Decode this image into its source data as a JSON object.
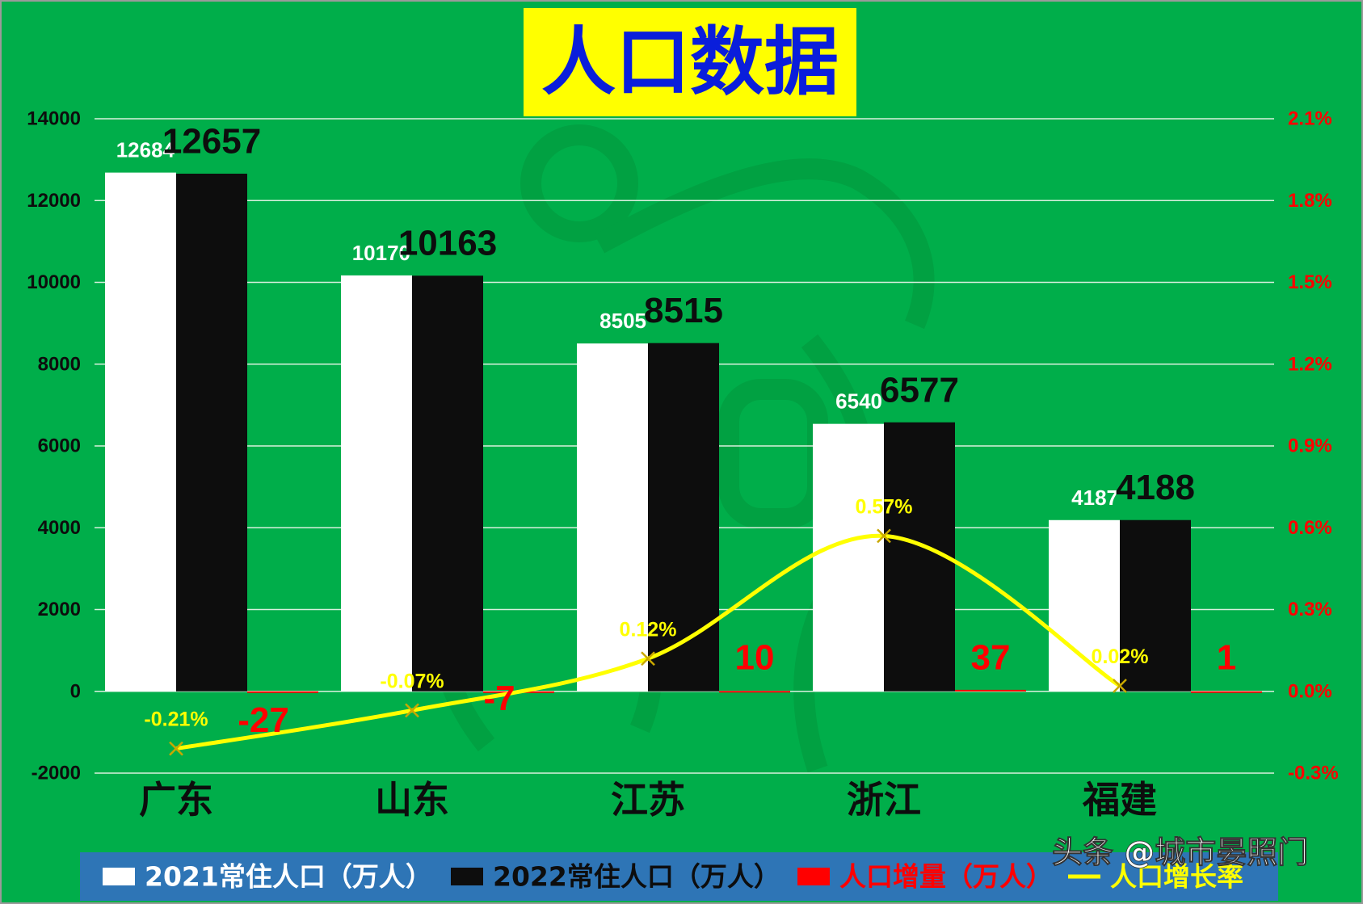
{
  "colors": {
    "background": "#00AE4A",
    "title_box": "#FFFF00",
    "title_text": "#0A1EDB",
    "bar_2021": "#FFFFFF",
    "bar_2022": "#0D0D0D",
    "increase": "#FF0000",
    "rate_line": "#FFFF00",
    "left_axis_text": "#0D0D0D",
    "right_axis_text": "#FF0000",
    "legend_background": "#2E75B6",
    "watermark_text": "#FFFFFF"
  },
  "chart_data": {
    "type": "bar",
    "title": "人口数据",
    "categories": [
      "广东",
      "山东",
      "江苏",
      "浙江",
      "福建"
    ],
    "y_left": {
      "ylim": [
        -2000,
        14000
      ],
      "ticks": [
        "14000",
        "12000",
        "10000",
        "8000",
        "6000",
        "4000",
        "2000",
        "0",
        "-2000"
      ]
    },
    "y_right": {
      "ylim": [
        -0.3,
        2.1
      ],
      "ticks": [
        "2.1%",
        "1.8%",
        "1.5%",
        "1.2%",
        "0.9%",
        "0.6%",
        "0.3%",
        "0.0%",
        "-0.3%"
      ]
    },
    "grid": true,
    "legend_position": "bottom",
    "series": [
      {
        "name": "2021常住人口（万人）",
        "type": "bar",
        "axis": "left",
        "values": [
          12684,
          10170,
          8505,
          6540,
          4187
        ],
        "labels": [
          "12684",
          "10170",
          "8505",
          "6540",
          "4187"
        ]
      },
      {
        "name": "2022常住人口（万人）",
        "type": "bar",
        "axis": "left",
        "values": [
          12657,
          10163,
          8515,
          6577,
          4188
        ],
        "labels": [
          "12657",
          "10163",
          "8515",
          "6577",
          "4188"
        ]
      },
      {
        "name": "人口增量（万人）",
        "type": "bar",
        "axis": "left",
        "values": [
          -27,
          -7,
          10,
          37,
          1
        ],
        "labels": [
          "-27",
          "-7",
          "10",
          "37",
          "1"
        ]
      },
      {
        "name": "人口增长率",
        "type": "line",
        "axis": "right",
        "values": [
          -0.21,
          -0.07,
          0.12,
          0.57,
          0.02
        ],
        "labels": [
          "-0.21%",
          "-0.07%",
          "0.12%",
          "0.57%",
          "0.02%"
        ]
      }
    ]
  },
  "watermark": "头条 @城市晏照门"
}
